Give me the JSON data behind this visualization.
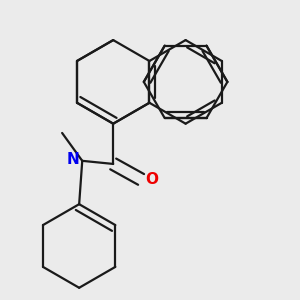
{
  "background_color": "#ebebeb",
  "bond_color": "#1a1a1a",
  "N_color": "#0000ee",
  "O_color": "#ee0000",
  "lw": 1.6,
  "dbo": 0.018
}
